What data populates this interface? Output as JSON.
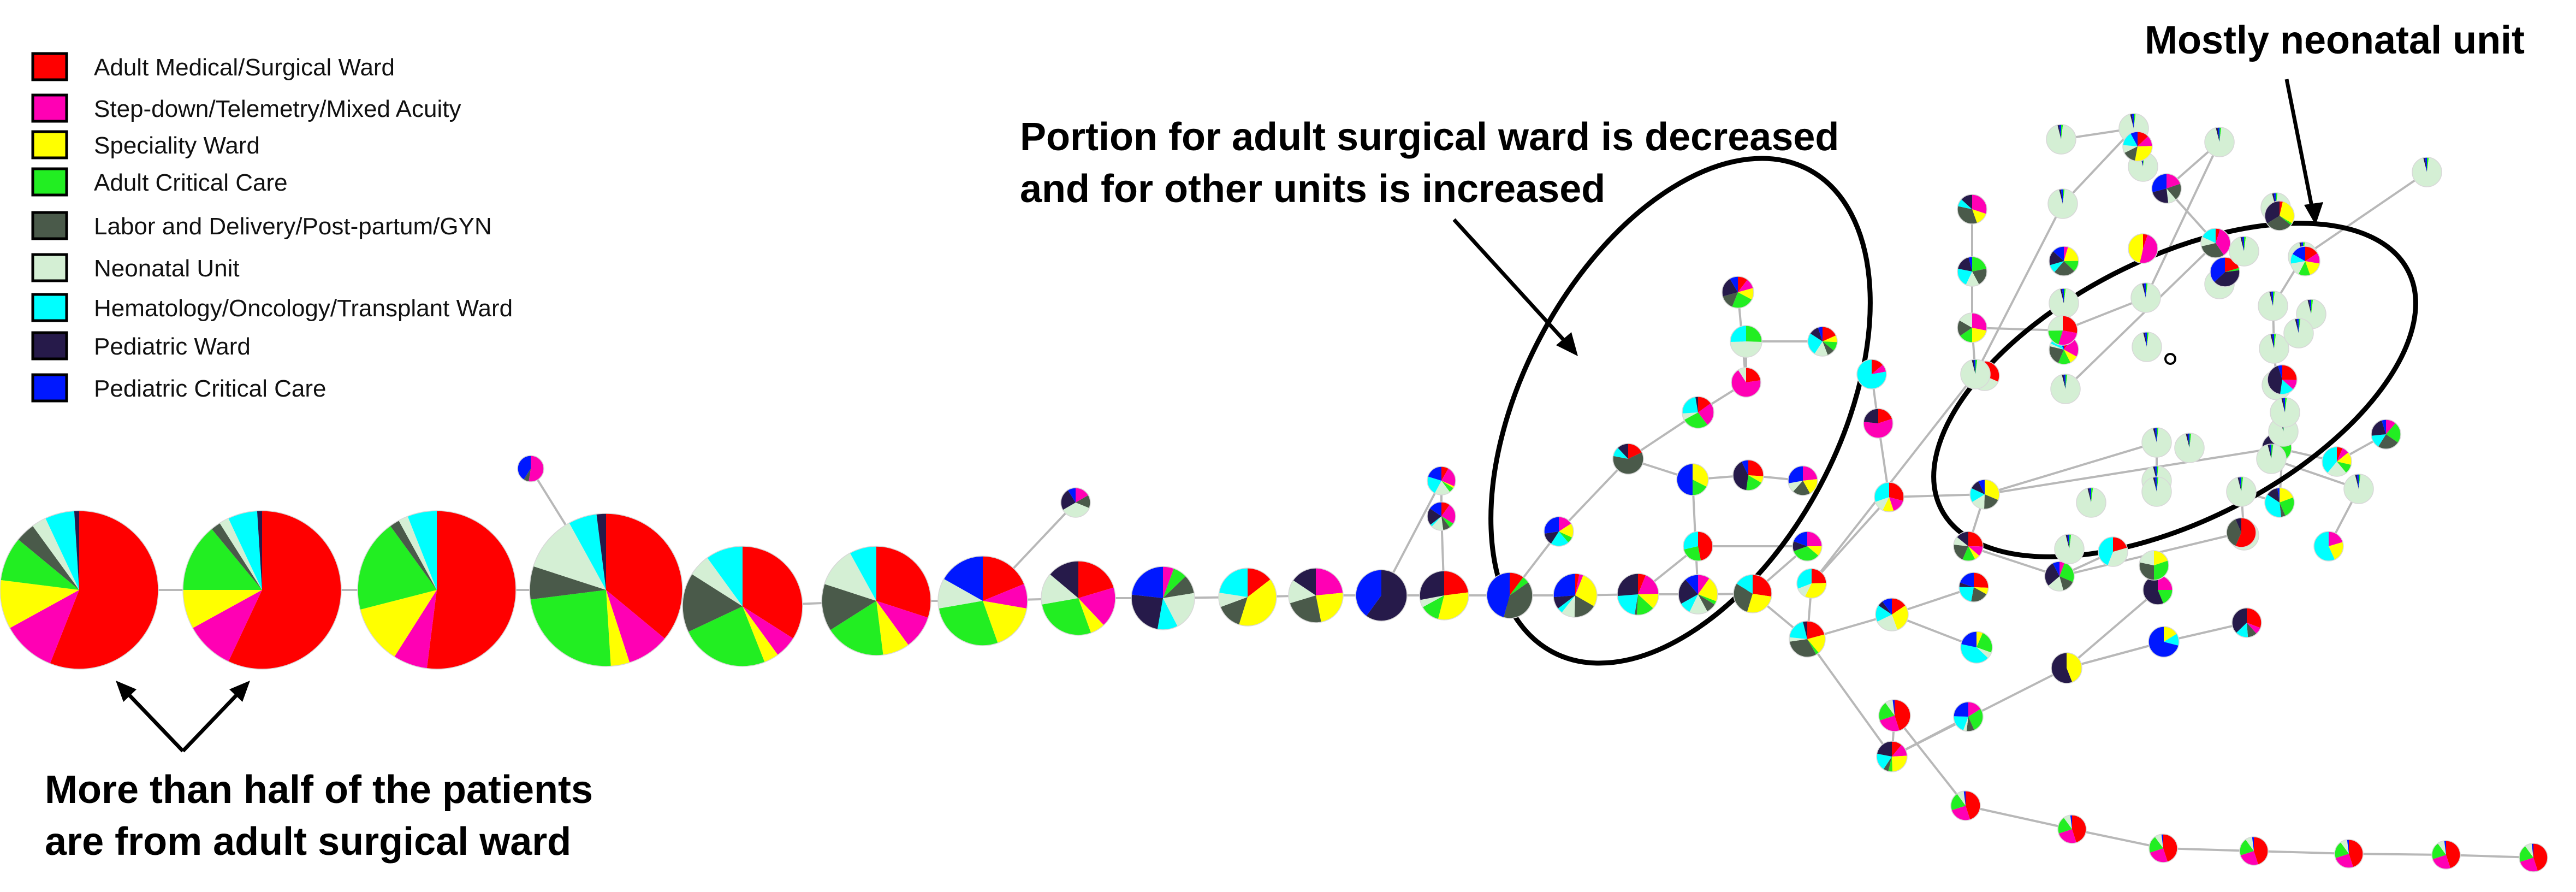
{
  "legend": [
    {
      "label": "Adult Medical/Surgical Ward",
      "color": "#ff0000"
    },
    {
      "label": "Step-down/Telemetry/Mixed Acuity",
      "color": "#ff00b4"
    },
    {
      "label": "Speciality Ward",
      "color": "#ffff00"
    },
    {
      "label": "Adult Critical Care",
      "color": "#22ee22"
    },
    {
      "label": "Labor and Delivery/Post-partum/GYN",
      "color": "#4a5a4a"
    },
    {
      "label": "Neonatal Unit",
      "color": "#d4efd4"
    },
    {
      "label": "Hematology/Oncology/Transplant Ward",
      "color": "#00ffff"
    },
    {
      "label": "Pediatric Ward",
      "color": "#261a4a"
    },
    {
      "label": "Pediatric Critical Care",
      "color": "#0018ff"
    }
  ],
  "annotations": {
    "adult_ward_line1": "More than half of the patients",
    "adult_ward_line2": "are from adult surgical ward",
    "portion_line1": "Portion for adult surgical ward is decreased",
    "portion_line2": "and for other units is increased",
    "neonatal": "Mostly neonatal unit"
  },
  "node_compositions": {
    "n1": [
      56,
      11,
      10,
      9,
      4,
      3,
      6,
      1
    ],
    "n2": [
      57,
      10,
      8,
      14,
      2,
      2,
      6,
      1
    ],
    "n3": [
      52,
      7,
      12,
      19,
      2,
      2,
      6
    ],
    "n4": [
      36,
      9,
      4,
      24,
      7,
      12,
      6,
      2
    ],
    "n5": [
      34,
      6,
      4,
      24,
      16,
      6,
      10
    ],
    "n6": [
      30,
      10,
      8,
      18,
      14,
      12,
      8
    ]
  }
}
